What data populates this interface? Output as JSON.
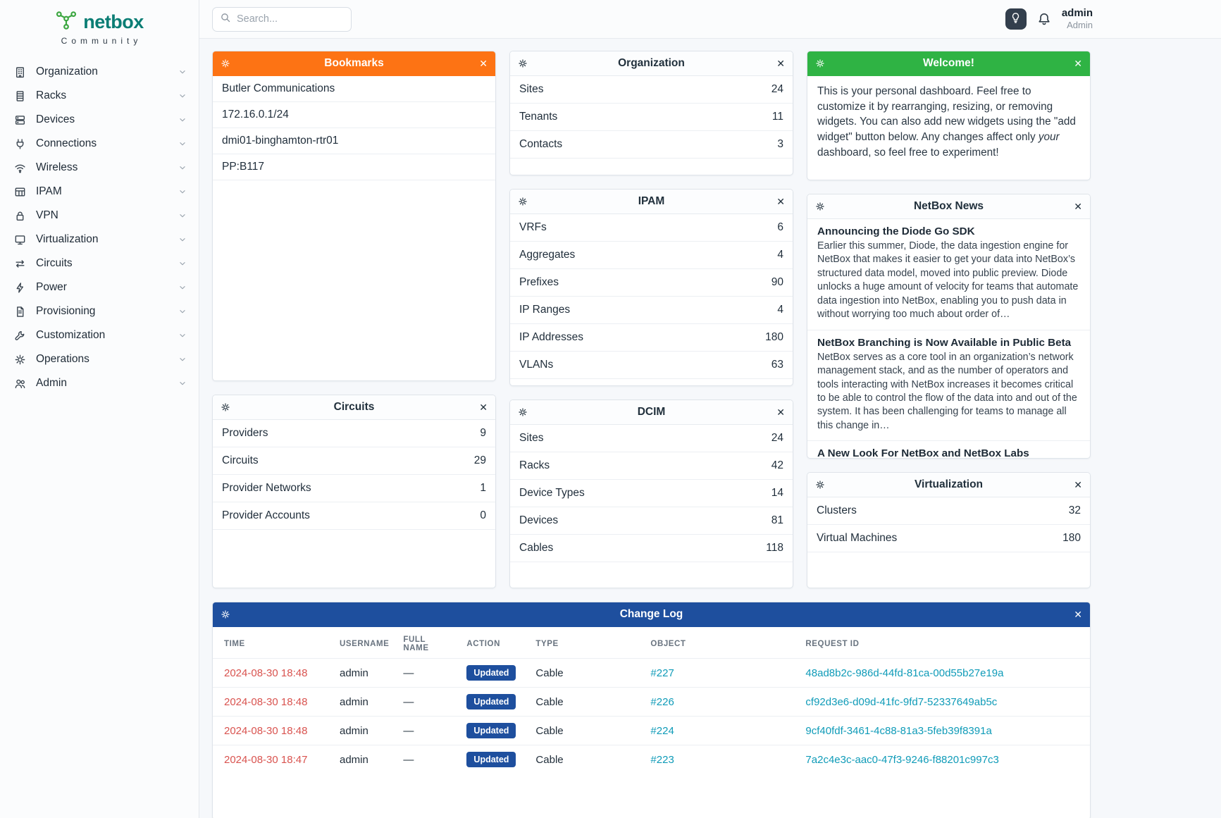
{
  "brand": {
    "name": "netbox",
    "subtitle": "Community"
  },
  "topbar": {
    "search_placeholder": "Search...",
    "user_name": "admin",
    "user_role": "Admin"
  },
  "colors": {
    "bookmarks_header": "#fd7314",
    "welcome_header": "#2fb344",
    "changelog_header": "#1e4f9e",
    "updated_badge": "#1e4f9e",
    "time_link": "#d9534f",
    "object_link": "#0f9bb8",
    "brand_teal": "#0a7d74",
    "brand_green": "#3aa63f"
  },
  "sidebar": {
    "items": [
      {
        "label": "Organization",
        "icon": "building-icon"
      },
      {
        "label": "Racks",
        "icon": "rack-icon"
      },
      {
        "label": "Devices",
        "icon": "server-icon"
      },
      {
        "label": "Connections",
        "icon": "plug-icon"
      },
      {
        "label": "Wireless",
        "icon": "wifi-icon"
      },
      {
        "label": "IPAM",
        "icon": "ip-grid-icon"
      },
      {
        "label": "VPN",
        "icon": "lock-icon"
      },
      {
        "label": "Virtualization",
        "icon": "monitor-icon"
      },
      {
        "label": "Circuits",
        "icon": "transfer-icon"
      },
      {
        "label": "Power",
        "icon": "bolt-icon"
      },
      {
        "label": "Provisioning",
        "icon": "document-icon"
      },
      {
        "label": "Customization",
        "icon": "wrench-icon"
      },
      {
        "label": "Operations",
        "icon": "gears-icon"
      },
      {
        "label": "Admin",
        "icon": "users-icon"
      }
    ]
  },
  "widgets": {
    "bookmarks": {
      "title": "Bookmarks",
      "items": [
        "Butler Communications",
        "172.16.0.1/24",
        "dmi01-binghamton-rtr01",
        "PP:B117"
      ]
    },
    "organization": {
      "title": "Organization",
      "stats": [
        {
          "label": "Sites",
          "value": "24"
        },
        {
          "label": "Tenants",
          "value": "11"
        },
        {
          "label": "Contacts",
          "value": "3"
        }
      ]
    },
    "welcome": {
      "title": "Welcome!",
      "segments": [
        {
          "text": "This is your personal dashboard. Feel free to customize it by rearranging, resizing, or removing widgets. You can also add new widgets using the \"add widget\" button below. Any changes affect only ",
          "style": "normal"
        },
        {
          "text": "your",
          "style": "italic"
        },
        {
          "text": " dashboard, so feel free to experiment!",
          "style": "normal"
        }
      ]
    },
    "ipam": {
      "title": "IPAM",
      "stats": [
        {
          "label": "VRFs",
          "value": "6"
        },
        {
          "label": "Aggregates",
          "value": "4"
        },
        {
          "label": "Prefixes",
          "value": "90"
        },
        {
          "label": "IP Ranges",
          "value": "4"
        },
        {
          "label": "IP Addresses",
          "value": "180"
        },
        {
          "label": "VLANs",
          "value": "63"
        }
      ]
    },
    "news": {
      "title": "NetBox News",
      "articles": [
        {
          "title": "Announcing the Diode Go SDK",
          "body": "Earlier this summer, Diode, the data ingestion engine for NetBox that makes it easier to get your data into NetBox’s structured data model, moved into public preview. Diode unlocks a huge amount of velocity for teams that automate data ingestion into NetBox, enabling you to push data in without worrying too much about order of…"
        },
        {
          "title": "NetBox Branching is Now Available in Public Beta",
          "body": "NetBox serves as a core tool in an organization’s network management stack, and as the number of operators and tools interacting with NetBox increases it becomes critical to be able to control the flow of the data into and out of the system. It has been challenging for teams to manage all this change in…"
        },
        {
          "title": "A New Look For NetBox and NetBox Labs",
          "body": ""
        }
      ]
    },
    "circuits": {
      "title": "Circuits",
      "stats": [
        {
          "label": "Providers",
          "value": "9"
        },
        {
          "label": "Circuits",
          "value": "29"
        },
        {
          "label": "Provider Networks",
          "value": "1"
        },
        {
          "label": "Provider Accounts",
          "value": "0"
        }
      ]
    },
    "dcim": {
      "title": "DCIM",
      "stats": [
        {
          "label": "Sites",
          "value": "24"
        },
        {
          "label": "Racks",
          "value": "42"
        },
        {
          "label": "Device Types",
          "value": "14"
        },
        {
          "label": "Devices",
          "value": "81"
        },
        {
          "label": "Cables",
          "value": "118"
        }
      ]
    },
    "virtualization": {
      "title": "Virtualization",
      "stats": [
        {
          "label": "Clusters",
          "value": "32"
        },
        {
          "label": "Virtual Machines",
          "value": "180"
        }
      ]
    },
    "changelog": {
      "title": "Change Log",
      "columns": [
        "TIME",
        "USERNAME",
        "FULL NAME",
        "ACTION",
        "TYPE",
        "OBJECT",
        "REQUEST ID"
      ],
      "rows": [
        {
          "time": "2024-08-30 18:48",
          "username": "admin",
          "full_name": "—",
          "action": "Updated",
          "type": "Cable",
          "object": "#227",
          "request_id": "48ad8b2c-986d-44fd-81ca-00d55b27e19a"
        },
        {
          "time": "2024-08-30 18:48",
          "username": "admin",
          "full_name": "—",
          "action": "Updated",
          "type": "Cable",
          "object": "#226",
          "request_id": "cf92d3e6-d09d-41fc-9fd7-52337649ab5c"
        },
        {
          "time": "2024-08-30 18:48",
          "username": "admin",
          "full_name": "—",
          "action": "Updated",
          "type": "Cable",
          "object": "#224",
          "request_id": "9cf40fdf-3461-4c88-81a3-5feb39f8391a"
        },
        {
          "time": "2024-08-30 18:47",
          "username": "admin",
          "full_name": "—",
          "action": "Updated",
          "type": "Cable",
          "object": "#223",
          "request_id": "7a2c4e3c-aac0-47f3-9246-f88201c997c3"
        }
      ]
    }
  }
}
